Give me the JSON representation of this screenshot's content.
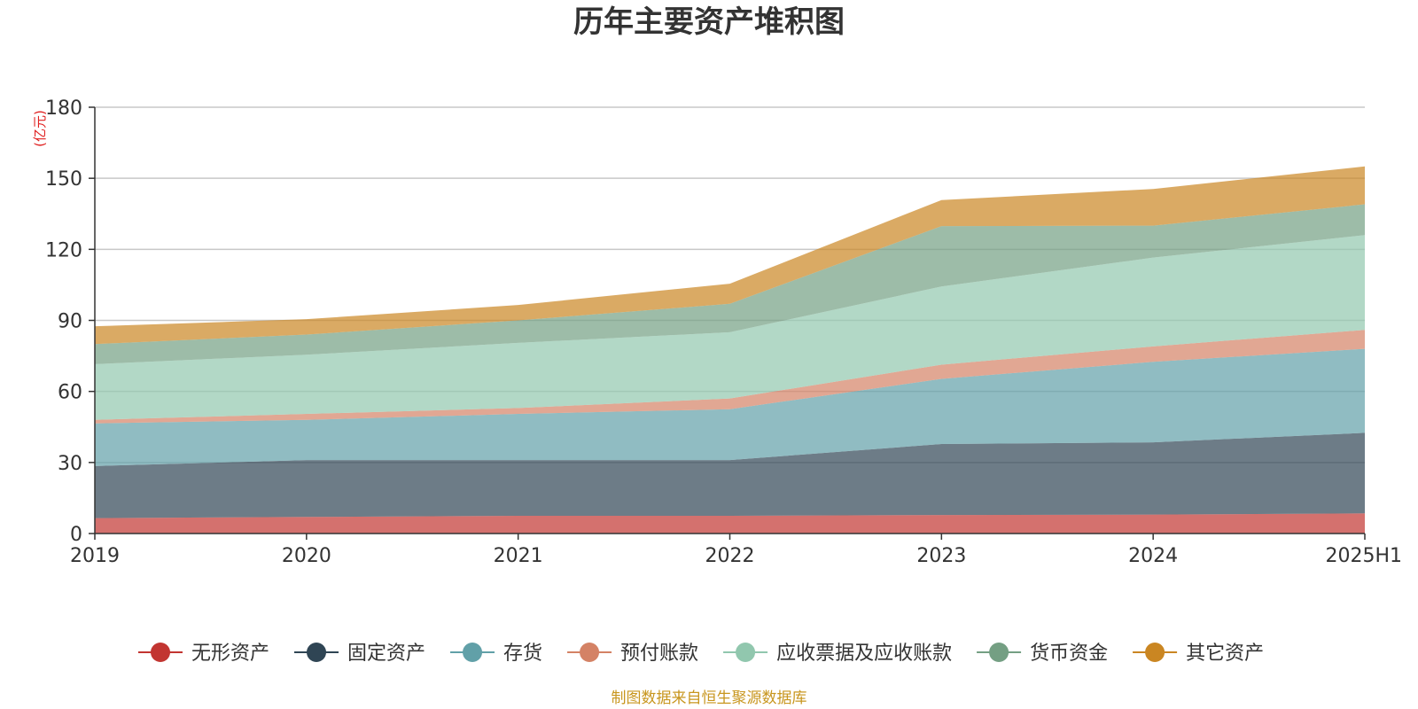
{
  "chart_data": {
    "type": "area",
    "stacked": true,
    "title": "历年主要资产堆积图",
    "unit_label": "(亿元)",
    "categories": [
      "2019",
      "2020",
      "2021",
      "2022",
      "2023",
      "2024",
      "2025H1"
    ],
    "ylim": [
      0,
      180
    ],
    "yticks": [
      0,
      30,
      60,
      90,
      120,
      150,
      180
    ],
    "grid": true,
    "legend_position": "bottom",
    "series": [
      {
        "name": "无形资产",
        "color": "#c23531",
        "values": [
          6.5,
          7,
          7.5,
          7.5,
          7.8,
          8,
          8.5
        ]
      },
      {
        "name": "固定资产",
        "color": "#2f4554",
        "values": [
          22,
          24,
          23.5,
          23.5,
          30,
          30.5,
          34
        ]
      },
      {
        "name": "存货",
        "color": "#61a0a8",
        "values": [
          18,
          17,
          19.5,
          21.5,
          27.5,
          34,
          35.5
        ]
      },
      {
        "name": "预付账款",
        "color": "#d48265",
        "values": [
          1.5,
          2.5,
          2.5,
          4.5,
          6,
          6.5,
          8
        ]
      },
      {
        "name": "应收票据及应收账款",
        "color": "#91c7ae",
        "values": [
          23.5,
          25,
          27.5,
          28,
          33,
          37.5,
          40
        ]
      },
      {
        "name": "货币资金",
        "color": "#749f83",
        "values": [
          8.5,
          8.5,
          9.5,
          12,
          25.5,
          13.5,
          13
        ]
      },
      {
        "name": "其它资产",
        "color": "#ca8622",
        "values": [
          7.5,
          6.5,
          6.5,
          8.5,
          11,
          15.5,
          16
        ]
      }
    ],
    "source_note": "制图数据来自恒生聚源数据库"
  }
}
